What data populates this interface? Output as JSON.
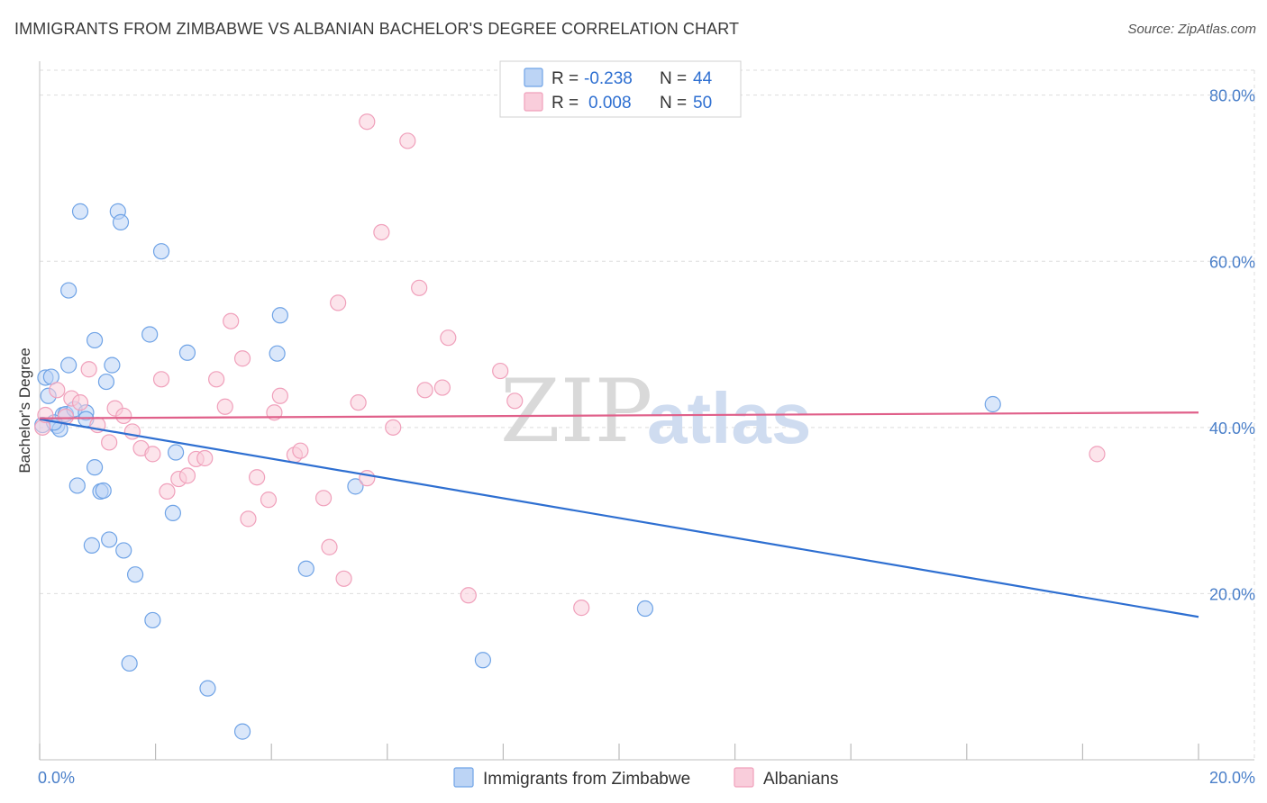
{
  "title": "IMMIGRANTS FROM ZIMBABWE VS ALBANIAN BACHELOR'S DEGREE CORRELATION CHART",
  "source": "Source: ZipAtlas.com",
  "watermark": {
    "zip": "ZIP",
    "atlas": "atlas"
  },
  "colors": {
    "blue": "#6fa3e6",
    "blue_fill": "#bcd4f5",
    "blue_line": "#2e6fd1",
    "pink": "#f0a0bb",
    "pink_fill": "#f9cddb",
    "pink_line": "#e0608a",
    "grid": "#dddddd",
    "tick_text": "#4a7fc9"
  },
  "legend": {
    "rows": [
      {
        "r_label": "R =",
        "r_value": "-0.238",
        "n_label": "N =",
        "n_value": "44",
        "series": "blue"
      },
      {
        "r_label": "R =",
        "r_value": "0.008",
        "n_label": "N =",
        "n_value": "50",
        "series": "pink"
      }
    ]
  },
  "chart_data": {
    "type": "scatter",
    "title": "IMMIGRANTS FROM ZIMBABWE VS ALBANIAN BACHELOR'S DEGREE CORRELATION CHART",
    "xlabel": "",
    "ylabel": "Bachelor's Degree",
    "xlim": [
      0,
      20
    ],
    "ylim": [
      0,
      83
    ],
    "x_tick_labels": [
      "0.0%",
      "20.0%"
    ],
    "y_tick_labels": [
      "20.0%",
      "40.0%",
      "60.0%",
      "80.0%"
    ],
    "y_tick_values": [
      20,
      40,
      60,
      80
    ],
    "x_minor_ticks": [
      0,
      2,
      4,
      6,
      8,
      10,
      12,
      14,
      16,
      18,
      20
    ],
    "grid": true,
    "legend_position": "top-center",
    "series": [
      {
        "name": "Immigrants from Zimbabwe",
        "color": "blue",
        "trend": {
          "x": [
            0,
            20
          ],
          "y": [
            41.0,
            17.2
          ]
        },
        "points": [
          {
            "x": 0.1,
            "y": 46.0
          },
          {
            "x": 0.15,
            "y": 43.8
          },
          {
            "x": 0.2,
            "y": 46.1
          },
          {
            "x": 0.3,
            "y": 40.2
          },
          {
            "x": 0.35,
            "y": 39.8
          },
          {
            "x": 0.4,
            "y": 41.5
          },
          {
            "x": 0.45,
            "y": 41.6
          },
          {
            "x": 0.5,
            "y": 47.5
          },
          {
            "x": 0.5,
            "y": 56.5
          },
          {
            "x": 0.6,
            "y": 42.2
          },
          {
            "x": 0.65,
            "y": 33.0
          },
          {
            "x": 0.7,
            "y": 66.0
          },
          {
            "x": 0.8,
            "y": 41.8
          },
          {
            "x": 0.8,
            "y": 41.0
          },
          {
            "x": 0.9,
            "y": 25.8
          },
          {
            "x": 0.95,
            "y": 50.5
          },
          {
            "x": 0.95,
            "y": 35.2
          },
          {
            "x": 1.05,
            "y": 32.3
          },
          {
            "x": 1.1,
            "y": 32.4
          },
          {
            "x": 1.15,
            "y": 45.5
          },
          {
            "x": 1.2,
            "y": 26.5
          },
          {
            "x": 1.25,
            "y": 47.5
          },
          {
            "x": 1.35,
            "y": 66.0
          },
          {
            "x": 1.4,
            "y": 64.7
          },
          {
            "x": 1.45,
            "y": 25.2
          },
          {
            "x": 1.55,
            "y": 11.6
          },
          {
            "x": 1.65,
            "y": 22.3
          },
          {
            "x": 1.9,
            "y": 51.2
          },
          {
            "x": 1.95,
            "y": 16.8
          },
          {
            "x": 2.1,
            "y": 61.2
          },
          {
            "x": 2.3,
            "y": 29.7
          },
          {
            "x": 2.35,
            "y": 37.0
          },
          {
            "x": 2.55,
            "y": 49.0
          },
          {
            "x": 2.9,
            "y": 8.6
          },
          {
            "x": 3.5,
            "y": 3.4
          },
          {
            "x": 4.1,
            "y": 48.9
          },
          {
            "x": 4.15,
            "y": 53.5
          },
          {
            "x": 4.6,
            "y": 23.0
          },
          {
            "x": 5.45,
            "y": 32.9
          },
          {
            "x": 7.65,
            "y": 12.0
          },
          {
            "x": 10.45,
            "y": 18.2
          },
          {
            "x": 16.45,
            "y": 42.8
          },
          {
            "x": 0.05,
            "y": 40.3
          },
          {
            "x": 0.25,
            "y": 40.6
          }
        ]
      },
      {
        "name": "Albanians",
        "color": "pink",
        "trend": {
          "x": [
            0,
            20
          ],
          "y": [
            41.1,
            41.8
          ]
        },
        "points": [
          {
            "x": 0.05,
            "y": 40.0
          },
          {
            "x": 0.1,
            "y": 41.5
          },
          {
            "x": 0.3,
            "y": 44.5
          },
          {
            "x": 0.45,
            "y": 41.3
          },
          {
            "x": 0.55,
            "y": 43.5
          },
          {
            "x": 0.7,
            "y": 43.0
          },
          {
            "x": 0.85,
            "y": 47.0
          },
          {
            "x": 1.0,
            "y": 40.3
          },
          {
            "x": 1.2,
            "y": 38.2
          },
          {
            "x": 1.3,
            "y": 42.3
          },
          {
            "x": 1.45,
            "y": 41.4
          },
          {
            "x": 1.6,
            "y": 39.5
          },
          {
            "x": 1.75,
            "y": 37.5
          },
          {
            "x": 1.95,
            "y": 36.8
          },
          {
            "x": 2.1,
            "y": 45.8
          },
          {
            "x": 2.2,
            "y": 32.3
          },
          {
            "x": 2.4,
            "y": 33.8
          },
          {
            "x": 2.55,
            "y": 34.2
          },
          {
            "x": 2.7,
            "y": 36.2
          },
          {
            "x": 2.85,
            "y": 36.3
          },
          {
            "x": 3.05,
            "y": 45.8
          },
          {
            "x": 3.2,
            "y": 42.5
          },
          {
            "x": 3.3,
            "y": 52.8
          },
          {
            "x": 3.5,
            "y": 48.3
          },
          {
            "x": 3.6,
            "y": 29.0
          },
          {
            "x": 3.75,
            "y": 34.0
          },
          {
            "x": 3.95,
            "y": 31.3
          },
          {
            "x": 4.05,
            "y": 41.8
          },
          {
            "x": 4.15,
            "y": 43.8
          },
          {
            "x": 4.4,
            "y": 36.7
          },
          {
            "x": 4.5,
            "y": 37.2
          },
          {
            "x": 4.9,
            "y": 31.5
          },
          {
            "x": 5.0,
            "y": 25.6
          },
          {
            "x": 5.15,
            "y": 55.0
          },
          {
            "x": 5.25,
            "y": 21.8
          },
          {
            "x": 5.5,
            "y": 43.0
          },
          {
            "x": 5.65,
            "y": 33.9
          },
          {
            "x": 5.65,
            "y": 76.8
          },
          {
            "x": 5.9,
            "y": 63.5
          },
          {
            "x": 6.1,
            "y": 40.0
          },
          {
            "x": 6.35,
            "y": 74.5
          },
          {
            "x": 6.55,
            "y": 56.8
          },
          {
            "x": 6.65,
            "y": 44.5
          },
          {
            "x": 6.95,
            "y": 44.8
          },
          {
            "x": 7.05,
            "y": 50.8
          },
          {
            "x": 7.4,
            "y": 19.8
          },
          {
            "x": 7.95,
            "y": 46.8
          },
          {
            "x": 8.2,
            "y": 43.2
          },
          {
            "x": 9.35,
            "y": 18.3
          },
          {
            "x": 18.25,
            "y": 36.8
          }
        ]
      }
    ]
  },
  "bottom_legend": [
    {
      "label": "Immigrants from Zimbabwe",
      "series": "blue"
    },
    {
      "label": "Albanians",
      "series": "pink"
    }
  ]
}
